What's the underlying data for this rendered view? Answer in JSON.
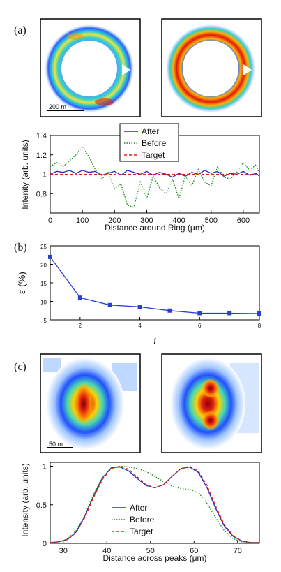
{
  "panel_labels": [
    "(a)",
    "(b)",
    "(c)"
  ],
  "images": {
    "a_scale": "200 m",
    "c_scale": "50 m"
  },
  "chart_data": [
    {
      "type": "line",
      "panel": "(a)",
      "xlabel": "Distance around Ring (μm)",
      "ylabel": "Intenity (arb. units)",
      "xlim": [
        0,
        650
      ],
      "ylim": [
        0.6,
        1.4
      ],
      "xticks": [
        "0",
        "100",
        "200",
        "300",
        "400",
        "500",
        "600"
      ],
      "yticks": [
        "0.8",
        "1",
        "1.2",
        "1.4"
      ],
      "legend_position": "top-center",
      "series": [
        {
          "name": "After",
          "color": "#1f2dbf",
          "style": "solid",
          "x": [
            0,
            20,
            40,
            60,
            80,
            100,
            120,
            140,
            160,
            180,
            200,
            220,
            240,
            260,
            280,
            300,
            320,
            340,
            360,
            380,
            400,
            420,
            440,
            460,
            480,
            500,
            520,
            540,
            560,
            580,
            600,
            620,
            640,
            650
          ],
          "y": [
            1.0,
            1.03,
            1.02,
            1.04,
            1.01,
            1.04,
            1.02,
            1.03,
            0.99,
            1.01,
            1.03,
            0.99,
            1.04,
            1.02,
            1.0,
            1.03,
            0.99,
            1.02,
            1.0,
            0.97,
            1.01,
            0.98,
            1.02,
            1.0,
            1.04,
            1.01,
            1.03,
            0.98,
            1.01,
            1.0,
            1.03,
            0.99,
            1.01,
            0.98
          ]
        },
        {
          "name": "Before",
          "color": "#1a8a1a",
          "style": "dotted",
          "x": [
            0,
            20,
            40,
            60,
            80,
            100,
            120,
            140,
            160,
            180,
            200,
            220,
            240,
            260,
            280,
            300,
            320,
            340,
            360,
            380,
            400,
            420,
            440,
            460,
            480,
            500,
            520,
            540,
            560,
            580,
            600,
            620,
            640,
            650
          ],
          "y": [
            1.08,
            1.12,
            1.08,
            1.14,
            1.2,
            1.29,
            1.18,
            1.05,
            0.95,
            1.02,
            0.85,
            0.9,
            0.68,
            0.66,
            0.92,
            0.75,
            0.98,
            0.86,
            0.8,
            0.95,
            0.75,
            0.98,
            0.88,
            1.05,
            0.92,
            0.88,
            1.08,
            0.97,
            0.95,
            1.02,
            1.12,
            1.04,
            1.1,
            1.0
          ]
        },
        {
          "name": "Target",
          "color": "#e02020",
          "style": "dashed",
          "x": [
            0,
            650
          ],
          "y": [
            1.0,
            1.0
          ]
        }
      ]
    },
    {
      "type": "line",
      "panel": "(b)",
      "xlabel": "i",
      "ylabel": "ε (%)",
      "xlim": [
        1,
        8
      ],
      "ylim": [
        5,
        25
      ],
      "xticks": [
        "2",
        "4",
        "6",
        "8"
      ],
      "yticks": [
        "5",
        "10",
        "15",
        "20",
        "25"
      ],
      "series": [
        {
          "color": "#2a3fd0",
          "x": [
            1,
            2,
            3,
            4,
            5,
            6,
            7,
            8
          ],
          "y": [
            22,
            11,
            9,
            8.5,
            7.5,
            6.8,
            6.8,
            6.7
          ]
        }
      ]
    },
    {
      "type": "line",
      "panel": "(c)",
      "xlabel": "Distance across peaks (μm)",
      "ylabel": "Intensity (arb. units)",
      "xlim": [
        27,
        75
      ],
      "ylim": [
        0,
        1.05
      ],
      "xticks": [
        "30",
        "40",
        "50",
        "60",
        "70"
      ],
      "yticks": [
        "0",
        "0.5",
        "1"
      ],
      "legend_position": "center",
      "series": [
        {
          "name": "After",
          "color": "#1f2dbf",
          "style": "solid",
          "x": [
            27,
            29,
            31,
            33,
            35,
            37,
            39,
            41,
            43,
            45,
            47,
            49,
            51,
            53,
            55,
            57,
            59,
            61,
            63,
            65,
            67,
            69,
            71,
            73,
            75
          ],
          "y": [
            0.01,
            0.02,
            0.05,
            0.15,
            0.36,
            0.62,
            0.85,
            0.98,
            0.99,
            0.94,
            0.84,
            0.75,
            0.72,
            0.76,
            0.87,
            0.97,
            0.99,
            0.92,
            0.72,
            0.45,
            0.22,
            0.09,
            0.03,
            0.01,
            0.01
          ]
        },
        {
          "name": "Before",
          "color": "#1a8a1a",
          "style": "dotted",
          "x": [
            27,
            29,
            31,
            33,
            35,
            37,
            39,
            41,
            43,
            45,
            47,
            49,
            51,
            53,
            55,
            57,
            59,
            61,
            63,
            65,
            67,
            69,
            71,
            73,
            75
          ],
          "y": [
            0.01,
            0.02,
            0.06,
            0.17,
            0.38,
            0.64,
            0.86,
            0.97,
            1.0,
            0.99,
            0.97,
            0.93,
            0.87,
            0.8,
            0.74,
            0.71,
            0.7,
            0.66,
            0.52,
            0.33,
            0.16,
            0.06,
            0.02,
            0.01,
            0.01
          ]
        },
        {
          "name": "Target",
          "color": "#e02020",
          "style": "dashed",
          "x": [
            27,
            29,
            31,
            33,
            35,
            37,
            39,
            41,
            43,
            45,
            47,
            49,
            51,
            53,
            55,
            57,
            59,
            61,
            63,
            65,
            67,
            69,
            71,
            73,
            75
          ],
          "y": [
            0.01,
            0.02,
            0.05,
            0.14,
            0.34,
            0.6,
            0.83,
            0.97,
            1.0,
            0.96,
            0.86,
            0.76,
            0.72,
            0.76,
            0.87,
            0.97,
            1.0,
            0.94,
            0.75,
            0.48,
            0.24,
            0.1,
            0.03,
            0.01,
            0.01
          ]
        }
      ]
    }
  ]
}
